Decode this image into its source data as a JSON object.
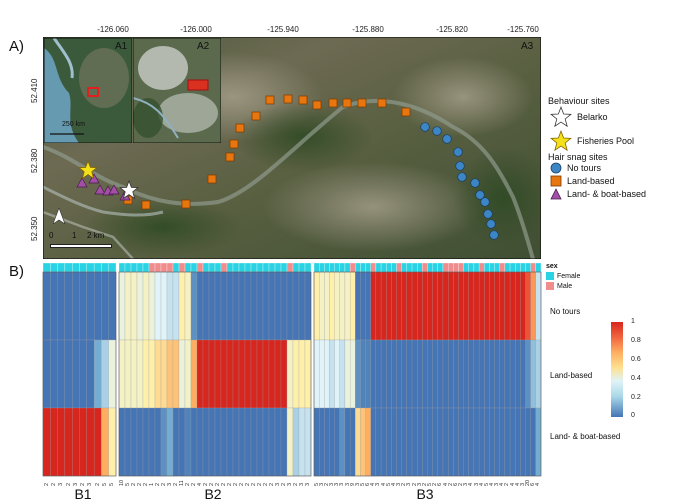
{
  "panel_a": {
    "label": "A)",
    "longitude_ticks": [
      "-126.060",
      "-126.000",
      "-125.940",
      "-125.880",
      "-125.820",
      "-125.760"
    ],
    "latitude_ticks": [
      "52.410",
      "52.380",
      "52.350"
    ],
    "inset_labels": [
      "A1",
      "A2",
      "A3"
    ],
    "inset_scale": "250 km",
    "scale_bar": {
      "zero": "0",
      "one": "1",
      "two": "2 km"
    },
    "north_arrow": "N",
    "legend": {
      "behaviour_title": "Behaviour sites",
      "behaviour_items": [
        {
          "label": "Belarko",
          "symbol": "white-star",
          "color": "#ffffff"
        },
        {
          "label": "Fisheries Pool",
          "symbol": "yellow-star",
          "color": "#f5e11a"
        }
      ],
      "hair_title": "Hair snag sites",
      "hair_items": [
        {
          "label": "No tours",
          "symbol": "circle",
          "color": "#3d86c6"
        },
        {
          "label": "Land-based",
          "symbol": "square",
          "color": "#e8760f"
        },
        {
          "label": "Land- & boat-based",
          "symbol": "triangle",
          "color": "#a24fa6"
        }
      ]
    }
  },
  "panel_b": {
    "label": "B)",
    "sex_label": "sex",
    "sex_legend": [
      {
        "label": "Female",
        "color": "#29d3e3"
      },
      {
        "label": "Male",
        "color": "#f08c8c"
      }
    ],
    "row_labels": [
      "No tours",
      "Land-based",
      "Land- & boat-based"
    ],
    "colorbar": {
      "ticks": [
        "1",
        "0.8",
        "0.6",
        "0.4",
        "0.2",
        "0"
      ],
      "colors": [
        "#d7261e",
        "#fdae61",
        "#fee090",
        "#e0f3f8",
        "#abd9e9",
        "#4575b4"
      ]
    },
    "block_labels": [
      "B1",
      "B2",
      "B3"
    ],
    "blocks": [
      {
        "name": "B1",
        "x_labels": [
          "2",
          "2",
          "3",
          "2",
          "3",
          "2",
          "3",
          "2",
          "5",
          "5"
        ],
        "sex": [
          "F",
          "F",
          "F",
          "F",
          "F",
          "F",
          "F",
          "F",
          "F",
          "F"
        ],
        "values": [
          [
            0,
            0,
            0,
            0,
            0,
            0,
            0,
            0,
            0,
            0
          ],
          [
            0,
            0,
            0,
            0,
            0,
            0,
            0,
            0.2,
            0.3,
            0.45
          ],
          [
            1,
            1,
            1,
            1,
            1,
            1,
            1,
            1,
            0.7,
            0.55
          ]
        ]
      },
      {
        "name": "B2",
        "x_labels": [
          "10",
          "5",
          "2",
          "2",
          "2",
          "1",
          "2",
          "2",
          "3",
          "2",
          "11",
          "2",
          "2",
          "4",
          "2",
          "2",
          "2",
          "2",
          "2",
          "2",
          "2",
          "2",
          "2",
          "2",
          "2",
          "2",
          "3",
          "2",
          "3",
          "2",
          "3",
          "3"
        ],
        "sex": [
          "F",
          "F",
          "F",
          "F",
          "F",
          "M",
          "M",
          "M",
          "M",
          "F",
          "M",
          "F",
          "F",
          "M",
          "F",
          "F",
          "F",
          "M",
          "F",
          "F",
          "F",
          "F",
          "F",
          "F",
          "F",
          "F",
          "F",
          "F",
          "M",
          "F",
          "F",
          "F"
        ],
        "values": [
          [
            0.45,
            0.5,
            0.5,
            0.45,
            0.5,
            0.45,
            0.4,
            0.4,
            0.35,
            0.35,
            0.55,
            0.5,
            0.1,
            0,
            0,
            0,
            0,
            0,
            0,
            0,
            0,
            0,
            0,
            0,
            0,
            0,
            0,
            0,
            0,
            0,
            0,
            0
          ],
          [
            0.5,
            0.5,
            0.5,
            0.5,
            0.55,
            0.55,
            0.6,
            0.6,
            0.65,
            0.65,
            0.45,
            0.5,
            0.7,
            1,
            1,
            1,
            1,
            1,
            1,
            1,
            1,
            1,
            1,
            1,
            1,
            1,
            1,
            1,
            0.5,
            0.55,
            0.55,
            0.55
          ],
          [
            0,
            0,
            0,
            0,
            0,
            0,
            0,
            0.1,
            0.2,
            0,
            0,
            0.05,
            0,
            0,
            0,
            0,
            0,
            0,
            0,
            0,
            0,
            0,
            0,
            0,
            0,
            0,
            0,
            0,
            0.5,
            0.3,
            0.35,
            0.35
          ]
        ]
      },
      {
        "name": "B3",
        "x_labels": [
          "5",
          "3",
          "2",
          "3",
          "3",
          "3",
          "3",
          "9",
          "3",
          "5",
          "6",
          "4",
          "3",
          "4",
          "5",
          "4",
          "3",
          "2",
          "3",
          "2",
          "3",
          "2",
          "5",
          "2",
          "6",
          "4",
          "2",
          "6",
          "2",
          "3",
          "4",
          "3",
          "4",
          "5",
          "4",
          "3",
          "4",
          "2",
          "4",
          "4",
          "3",
          "20",
          "6",
          "4"
        ],
        "sex": [
          "F",
          "F",
          "F",
          "F",
          "F",
          "F",
          "F",
          "M",
          "F",
          "F",
          "F",
          "M",
          "F",
          "F",
          "F",
          "F",
          "M",
          "F",
          "F",
          "F",
          "F",
          "M",
          "F",
          "F",
          "F",
          "M",
          "M",
          "M",
          "M",
          "F",
          "F",
          "F",
          "M",
          "F",
          "F",
          "F",
          "M",
          "F",
          "F",
          "F",
          "F",
          "F",
          "M",
          "F"
        ],
        "values": [
          [
            0.55,
            0.5,
            0.5,
            0.55,
            0.5,
            0.5,
            0.5,
            0.55,
            0,
            0,
            0,
            1,
            1,
            1,
            1,
            1,
            1,
            1,
            1,
            1,
            1,
            1,
            1,
            1,
            1,
            1,
            1,
            1,
            1,
            1,
            1,
            1,
            1,
            1,
            1,
            1,
            1,
            1,
            1,
            1,
            1,
            0.9,
            0.75,
            0.35
          ],
          [
            0.4,
            0.4,
            0.4,
            0.35,
            0.4,
            0.35,
            0.45,
            0.45,
            0.1,
            0.05,
            0.05,
            0,
            0,
            0,
            0,
            0,
            0,
            0,
            0,
            0,
            0,
            0,
            0,
            0,
            0,
            0,
            0,
            0,
            0,
            0,
            0,
            0,
            0,
            0,
            0,
            0,
            0,
            0,
            0,
            0,
            0,
            0.1,
            0.25,
            0.3
          ],
          [
            0,
            0,
            0,
            0,
            0,
            0.1,
            0,
            0,
            0.6,
            0.65,
            0.7,
            0,
            0,
            0,
            0,
            0,
            0,
            0,
            0,
            0,
            0,
            0,
            0,
            0,
            0,
            0,
            0,
            0,
            0,
            0,
            0,
            0,
            0,
            0,
            0,
            0,
            0,
            0,
            0,
            0,
            0,
            0,
            0,
            0.2
          ]
        ]
      }
    ]
  },
  "map_points": {
    "orange": [
      [
        270,
        100
      ],
      [
        288,
        99
      ],
      [
        303,
        100
      ],
      [
        317,
        105
      ],
      [
        333,
        103
      ],
      [
        347,
        103
      ],
      [
        362,
        103
      ],
      [
        382,
        103
      ],
      [
        406,
        112
      ],
      [
        256,
        116
      ],
      [
        240,
        128
      ],
      [
        234,
        144
      ],
      [
        230,
        157
      ],
      [
        212,
        179
      ],
      [
        186,
        204
      ],
      [
        146,
        205
      ],
      [
        128,
        200
      ]
    ],
    "blue": [
      [
        425,
        127
      ],
      [
        437,
        131
      ],
      [
        447,
        139
      ],
      [
        458,
        152
      ],
      [
        460,
        166
      ],
      [
        462,
        177
      ],
      [
        475,
        183
      ],
      [
        480,
        195
      ],
      [
        485,
        202
      ],
      [
        488,
        214
      ],
      [
        491,
        224
      ],
      [
        494,
        235
      ]
    ],
    "purple": [
      [
        82,
        183
      ],
      [
        94,
        179
      ],
      [
        100,
        190
      ],
      [
        108,
        191
      ],
      [
        114,
        190
      ],
      [
        125,
        196
      ],
      [
        128,
        190
      ]
    ]
  }
}
